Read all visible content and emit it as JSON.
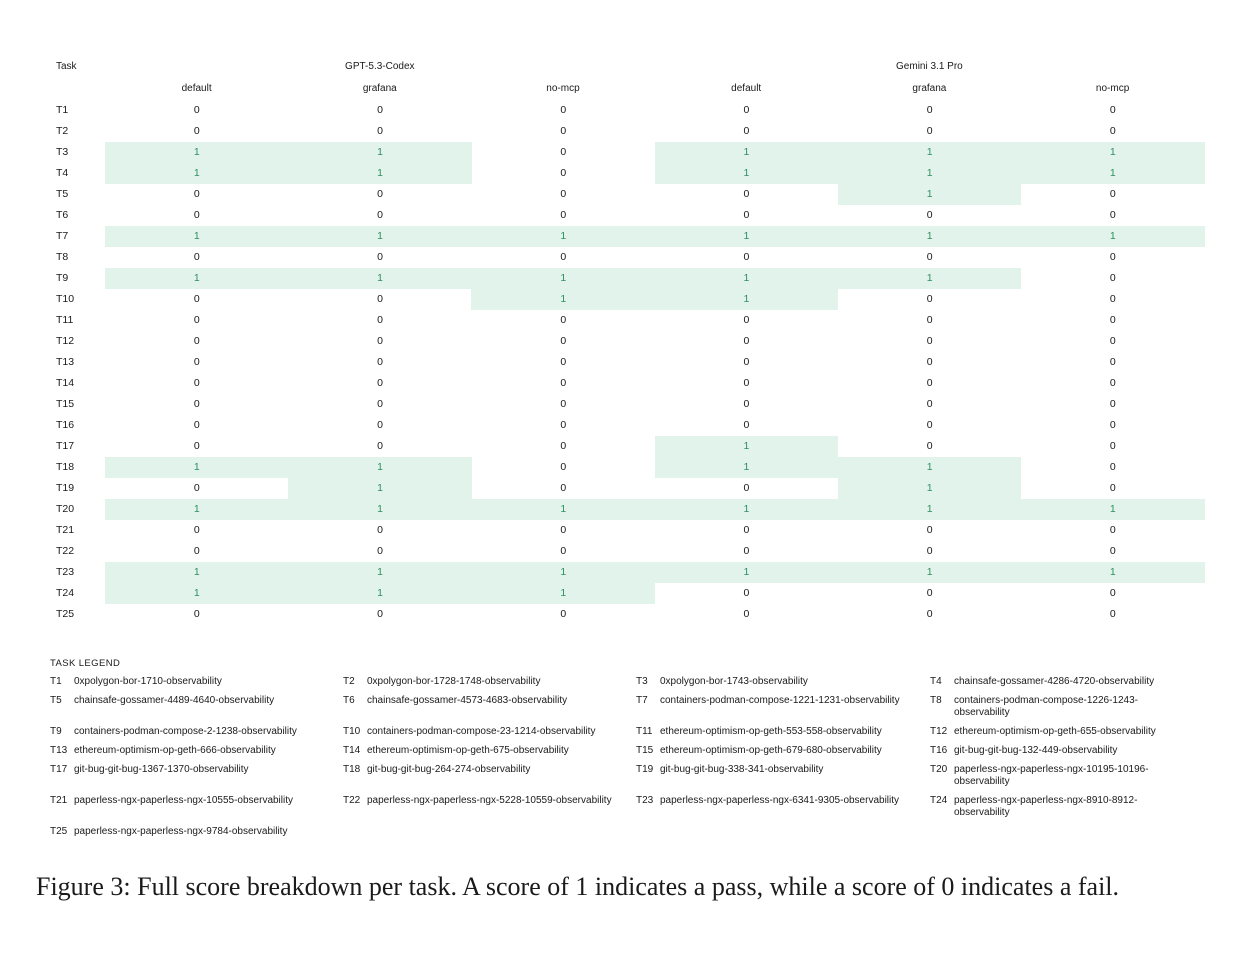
{
  "table": {
    "task_header": "Task",
    "groups": [
      "GPT-5.3-Codex",
      "Gemini 3.1 Pro"
    ],
    "columns": [
      "default",
      "grafana",
      "no-mcp",
      "default",
      "grafana",
      "no-mcp"
    ],
    "rows": [
      {
        "task": "T1",
        "scores": [
          0,
          0,
          0,
          0,
          0,
          0
        ]
      },
      {
        "task": "T2",
        "scores": [
          0,
          0,
          0,
          0,
          0,
          0
        ]
      },
      {
        "task": "T3",
        "scores": [
          1,
          1,
          0,
          1,
          1,
          1
        ]
      },
      {
        "task": "T4",
        "scores": [
          1,
          1,
          0,
          1,
          1,
          1
        ]
      },
      {
        "task": "T5",
        "scores": [
          0,
          0,
          0,
          0,
          1,
          0
        ]
      },
      {
        "task": "T6",
        "scores": [
          0,
          0,
          0,
          0,
          0,
          0
        ]
      },
      {
        "task": "T7",
        "scores": [
          1,
          1,
          1,
          1,
          1,
          1
        ]
      },
      {
        "task": "T8",
        "scores": [
          0,
          0,
          0,
          0,
          0,
          0
        ]
      },
      {
        "task": "T9",
        "scores": [
          1,
          1,
          1,
          1,
          1,
          0
        ]
      },
      {
        "task": "T10",
        "scores": [
          0,
          0,
          1,
          1,
          0,
          0
        ]
      },
      {
        "task": "T11",
        "scores": [
          0,
          0,
          0,
          0,
          0,
          0
        ]
      },
      {
        "task": "T12",
        "scores": [
          0,
          0,
          0,
          0,
          0,
          0
        ]
      },
      {
        "task": "T13",
        "scores": [
          0,
          0,
          0,
          0,
          0,
          0
        ]
      },
      {
        "task": "T14",
        "scores": [
          0,
          0,
          0,
          0,
          0,
          0
        ]
      },
      {
        "task": "T15",
        "scores": [
          0,
          0,
          0,
          0,
          0,
          0
        ]
      },
      {
        "task": "T16",
        "scores": [
          0,
          0,
          0,
          0,
          0,
          0
        ]
      },
      {
        "task": "T17",
        "scores": [
          0,
          0,
          0,
          1,
          0,
          0
        ]
      },
      {
        "task": "T18",
        "scores": [
          1,
          1,
          0,
          1,
          1,
          0
        ]
      },
      {
        "task": "T19",
        "scores": [
          0,
          1,
          0,
          0,
          1,
          0
        ]
      },
      {
        "task": "T20",
        "scores": [
          1,
          1,
          1,
          1,
          1,
          1
        ]
      },
      {
        "task": "T21",
        "scores": [
          0,
          0,
          0,
          0,
          0,
          0
        ]
      },
      {
        "task": "T22",
        "scores": [
          0,
          0,
          0,
          0,
          0,
          0
        ]
      },
      {
        "task": "T23",
        "scores": [
          1,
          1,
          1,
          1,
          1,
          1
        ]
      },
      {
        "task": "T24",
        "scores": [
          1,
          1,
          1,
          0,
          0,
          0
        ]
      },
      {
        "task": "T25",
        "scores": [
          0,
          0,
          0,
          0,
          0,
          0
        ]
      }
    ]
  },
  "legend": {
    "title": "TASK LEGEND",
    "items": [
      {
        "id": "T1",
        "name": "0xpolygon-bor-1710-observability"
      },
      {
        "id": "T2",
        "name": "0xpolygon-bor-1728-1748-observability"
      },
      {
        "id": "T3",
        "name": "0xpolygon-bor-1743-observability"
      },
      {
        "id": "T4",
        "name": "chainsafe-gossamer-4286-4720-observability"
      },
      {
        "id": "T5",
        "name": "chainsafe-gossamer-4489-4640-observability"
      },
      {
        "id": "T6",
        "name": "chainsafe-gossamer-4573-4683-observability"
      },
      {
        "id": "T7",
        "name": "containers-podman-compose-1221-1231-observability"
      },
      {
        "id": "T8",
        "name": "containers-podman-compose-1226-1243-observability"
      },
      {
        "id": "T9",
        "name": "containers-podman-compose-2-1238-observability"
      },
      {
        "id": "T10",
        "name": "containers-podman-compose-23-1214-observability"
      },
      {
        "id": "T11",
        "name": "ethereum-optimism-op-geth-553-558-observability"
      },
      {
        "id": "T12",
        "name": "ethereum-optimism-op-geth-655-observability"
      },
      {
        "id": "T13",
        "name": "ethereum-optimism-op-geth-666-observability"
      },
      {
        "id": "T14",
        "name": "ethereum-optimism-op-geth-675-observability"
      },
      {
        "id": "T15",
        "name": "ethereum-optimism-op-geth-679-680-observability"
      },
      {
        "id": "T16",
        "name": "git-bug-git-bug-132-449-observability"
      },
      {
        "id": "T17",
        "name": "git-bug-git-bug-1367-1370-observability"
      },
      {
        "id": "T18",
        "name": "git-bug-git-bug-264-274-observability"
      },
      {
        "id": "T19",
        "name": "git-bug-git-bug-338-341-observability"
      },
      {
        "id": "T20",
        "name": "paperless-ngx-paperless-ngx-10195-10196-observability"
      },
      {
        "id": "T21",
        "name": "paperless-ngx-paperless-ngx-10555-observability"
      },
      {
        "id": "T22",
        "name": "paperless-ngx-paperless-ngx-5228-10559-observability"
      },
      {
        "id": "T23",
        "name": "paperless-ngx-paperless-ngx-6341-9305-observability"
      },
      {
        "id": "T24",
        "name": "paperless-ngx-paperless-ngx-8910-8912-observability"
      },
      {
        "id": "T25",
        "name": "paperless-ngx-paperless-ngx-9784-observability"
      }
    ]
  },
  "caption": "Figure 3: Full score breakdown per task. A score of 1 indicates a pass, while a score of 0 indicates a fail."
}
